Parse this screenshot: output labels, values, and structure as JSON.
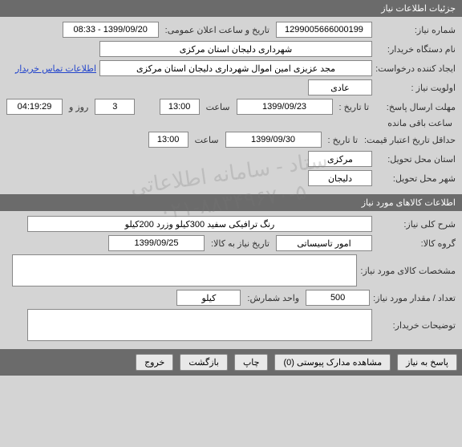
{
  "watermark": {
    "line1": "ستاد - سامانه اطلاعاتی",
    "line2": "۰۲۱-۸۸۳۴۹۶۷۰-۵"
  },
  "section1": {
    "title": "جزئیات اطلاعات نیاز",
    "need_number_label": "شماره نیاز:",
    "need_number": "1299005666000199",
    "announce_label": "تاریخ و ساعت اعلان عمومی:",
    "announce_value": "1399/09/20 - 08:33",
    "buyer_label": "نام دستگاه خریدار:",
    "buyer_value": "شهرداری دلیجان استان مرکزی",
    "creator_label": "ایجاد کننده درخواست:",
    "creator_value": "مجد عزیزی امین اموال شهرداری دلیجان استان مرکزی",
    "contact_link": "اطلاعات تماس خریدار",
    "priority_label": "اولویت نیاز :",
    "priority_value": "عادی",
    "deadline_label": "مهلت ارسال پاسخ:",
    "to_date_label": "تا تاریخ :",
    "deadline_date": "1399/09/23",
    "time_label": "ساعت",
    "deadline_time": "13:00",
    "days_value": "3",
    "days_label": "روز و",
    "remaining_time": "04:19:29",
    "remaining_label": "ساعت باقی مانده",
    "min_credit_label": "حداقل تاریخ اعتبار قیمت:",
    "credit_date": "1399/09/30",
    "credit_time": "13:00",
    "province_label": "استان محل تحویل:",
    "province_value": "مرکزی",
    "city_label": "شهر محل تحویل:",
    "city_value": "دلیجان"
  },
  "section2": {
    "title": "اطلاعات کالاهای مورد نیاز",
    "desc_label": "شرح کلی نیاز:",
    "desc_value": "رنگ ترافیکی سفید 300کیلو وزرد 200کیلو",
    "group_label": "گروه کالا:",
    "group_value": "امور تاسیساتی",
    "need_date_label": "تاریخ نیاز به کالا:",
    "need_date": "1399/09/25",
    "spec_label": "مشخصات کالای مورد نیاز:",
    "spec_value": "",
    "qty_label": "تعداد / مقدار مورد نیاز:",
    "qty_value": "500",
    "unit_label": "واحد شمارش:",
    "unit_value": "کیلو",
    "notes_label": "توضیحات خریدار:",
    "notes_value": ""
  },
  "buttons": {
    "reply": "پاسخ به نیاز",
    "attach": "مشاهده مدارک پیوستی (0)",
    "print": "چاپ",
    "back": "بازگشت",
    "exit": "خروج"
  }
}
